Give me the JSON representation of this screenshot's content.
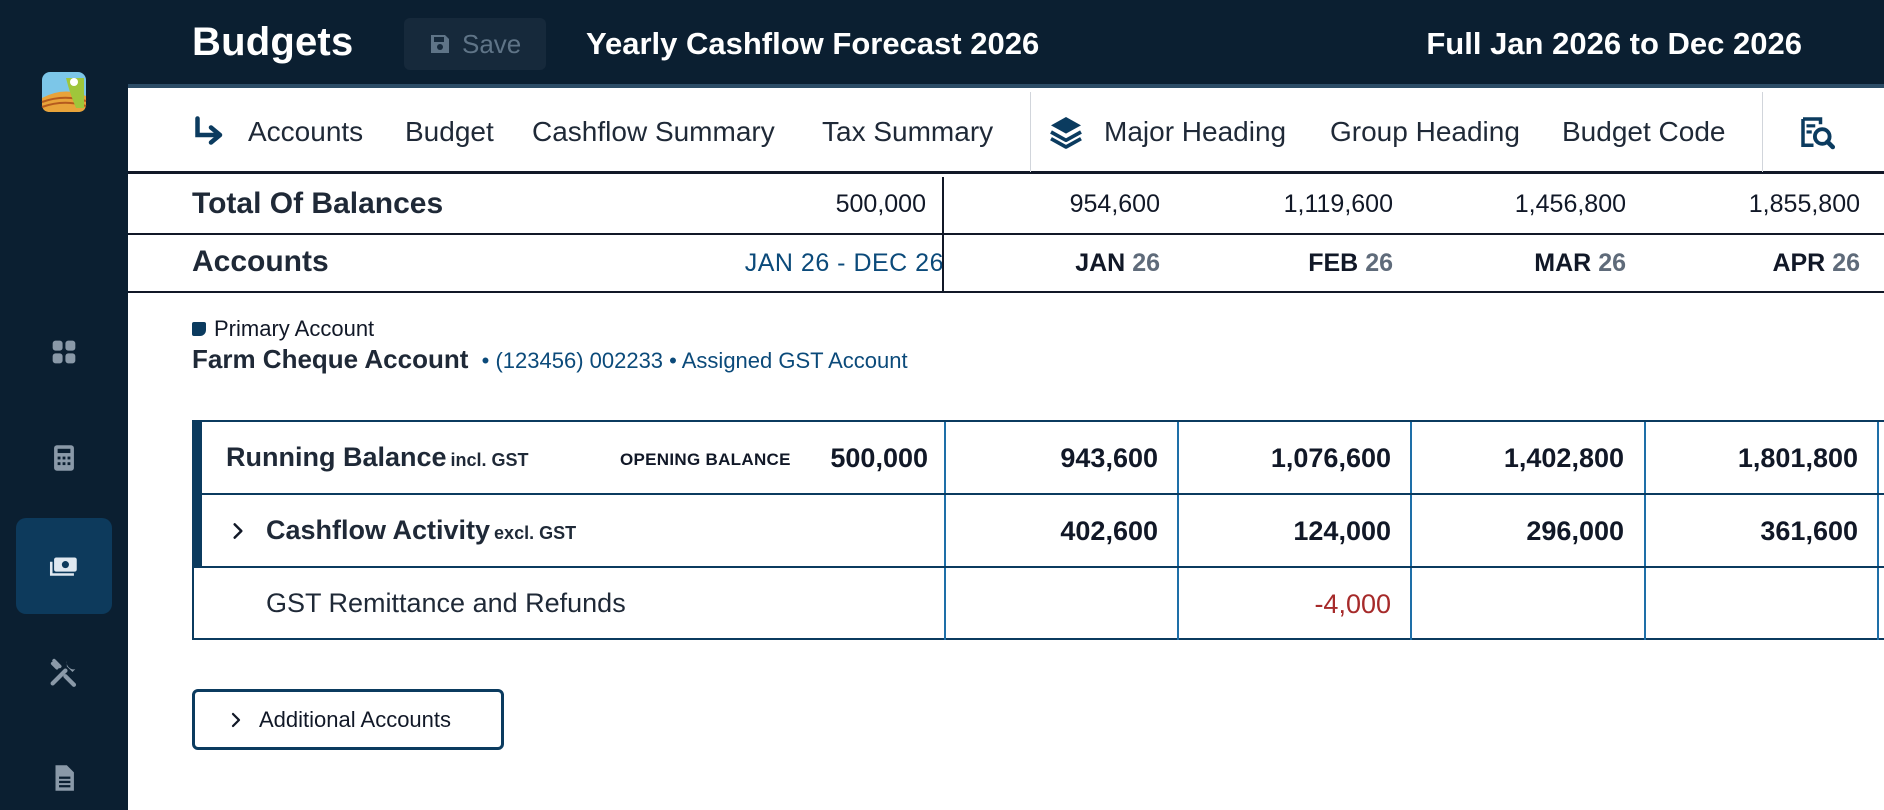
{
  "header": {
    "brand": "Budgets",
    "save_label": "Save",
    "document_title": "Yearly Cashflow Forecast 2026",
    "period": "Full Jan 2026 to Dec 2026"
  },
  "sidebar": {
    "items": [
      {
        "icon": "dashboard-grid-icon",
        "active": false
      },
      {
        "icon": "calculator-icon",
        "active": false
      },
      {
        "icon": "cash-money-icon",
        "active": true
      },
      {
        "icon": "tools-icon",
        "active": false
      },
      {
        "icon": "document-icon",
        "active": false
      }
    ]
  },
  "nav": {
    "group1": [
      "Accounts",
      "Budget",
      "Cashflow Summary",
      "Tax Summary"
    ],
    "group2": [
      "Major Heading",
      "Group Heading",
      "Budget Code"
    ]
  },
  "totals": {
    "label": "Total Of Balances",
    "overall": "500,000",
    "months": [
      "954,600",
      "1,119,600",
      "1,456,800",
      "1,855,800"
    ]
  },
  "accounts_header": {
    "label": "Accounts",
    "range": "JAN 26 - DEC 26",
    "months": [
      {
        "m": "JAN",
        "y": "26"
      },
      {
        "m": "FEB",
        "y": "26"
      },
      {
        "m": "MAR",
        "y": "26"
      },
      {
        "m": "APR",
        "y": "26"
      }
    ]
  },
  "account": {
    "type": "Primary Account",
    "name": "Farm Cheque Account",
    "meta": "• (123456) 002233 • Assigned GST Account"
  },
  "table": {
    "running_balance": {
      "label": "Running Balance",
      "suffix": "incl. GST",
      "opening_label": "OPENING BALANCE",
      "opening_value": "500,000",
      "months": [
        "943,600",
        "1,076,600",
        "1,402,800",
        "1,801,800"
      ]
    },
    "cashflow_activity": {
      "label": "Cashflow Activity",
      "suffix": "excl. GST",
      "months": [
        "402,600",
        "124,000",
        "296,000",
        "361,600"
      ]
    },
    "gst": {
      "label": "GST Remittance and Refunds",
      "months": [
        "",
        "-4,000",
        "",
        ""
      ]
    }
  },
  "additional_accounts_label": "Additional Accounts",
  "colors": {
    "sidebar_bg": "#0b1f31",
    "accent": "#0b3b5f",
    "negative": "#a62a2a",
    "link": "#0b4a7a"
  }
}
